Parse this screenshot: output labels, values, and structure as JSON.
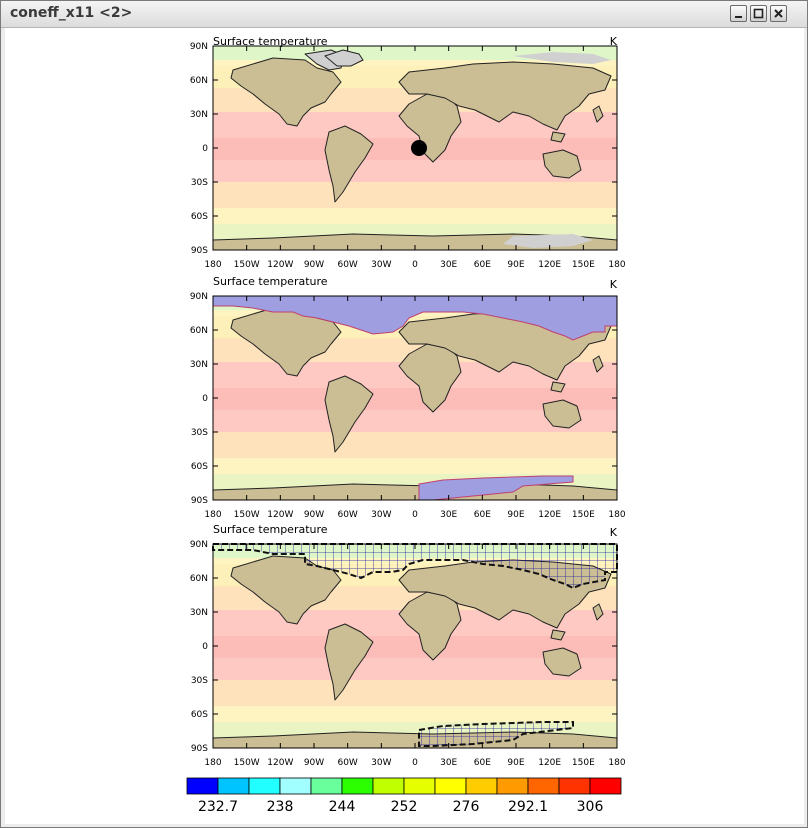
{
  "window": {
    "title": "coneff_x11 <2>",
    "buttons": [
      "minimize-icon",
      "maximize-icon",
      "close-icon"
    ]
  },
  "panels": [
    {
      "title": "Surface temperature",
      "units": "K",
      "overlay": "point-marker"
    },
    {
      "title": "Surface temperature",
      "units": "K",
      "overlay": "ice-mask-shaded"
    },
    {
      "title": "Surface temperature",
      "units": "K",
      "overlay": "ice-mask-hatched"
    }
  ],
  "axes": {
    "lat_ticks": [
      "90N",
      "60N",
      "30N",
      "0",
      "30S",
      "60S",
      "90S"
    ],
    "lon_ticks": [
      "180",
      "150W",
      "120W",
      "90W",
      "60W",
      "30W",
      "0",
      "30E",
      "60E",
      "90E",
      "120E",
      "150E",
      "180"
    ]
  },
  "colorbar": {
    "colors": [
      "#0000ff",
      "#00c4ff",
      "#22ffff",
      "#a2ffff",
      "#68ff9c",
      "#2cff00",
      "#c0ff00",
      "#e6ff00",
      "#ffff00",
      "#ffcc00",
      "#ff9a00",
      "#ff6600",
      "#ff3300",
      "#ff0000"
    ],
    "labels": [
      "232.7",
      "238",
      "244",
      "252",
      "276",
      "292.1",
      "306"
    ]
  },
  "colors": {
    "ocean_warm": "#fdc6c0",
    "ocean_mid": "#fde0b6",
    "ocean_cool": "#fdf8c4",
    "land": "#cbbd94",
    "mask_fill": "#9e9ee0",
    "hatch": "#1c1ca0",
    "missing": "#d0d0d0"
  }
}
